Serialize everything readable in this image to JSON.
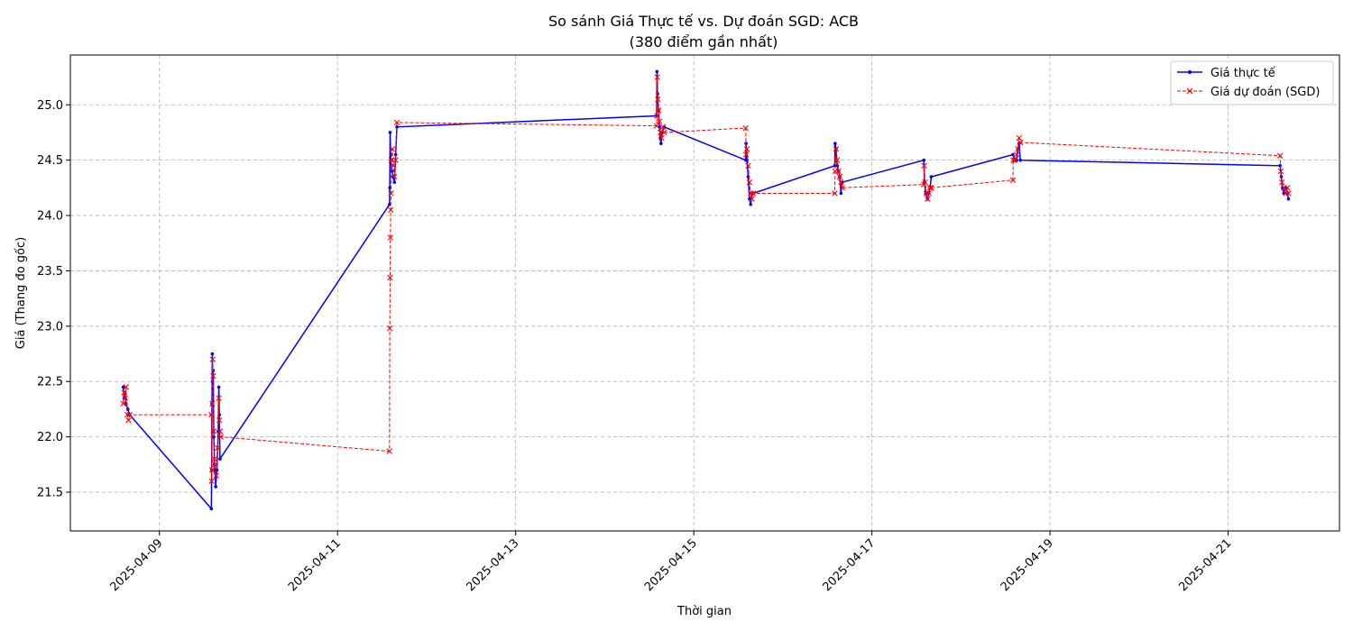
{
  "chart_data": {
    "type": "line",
    "title": "So sánh Giá Thực tế vs. Dự đoán SGD: ACB",
    "subtitle": "(380 điểm gần nhất)",
    "xlabel": "Thời gian",
    "ylabel": "Giá (Thang đo gốc)",
    "x_tick_labels": [
      "2025-04-09",
      "2025-04-11",
      "2025-04-13",
      "2025-04-15",
      "2025-04-17",
      "2025-04-19",
      "2025-04-21"
    ],
    "y_tick_labels": [
      "21.5",
      "22.0",
      "22.5",
      "23.0",
      "23.5",
      "24.0",
      "24.5",
      "25.0"
    ],
    "xlim": [
      "2025-04-08T00:00",
      "2025-04-22T06:00"
    ],
    "ylim": [
      21.15,
      25.45
    ],
    "grid": true,
    "legend_position": "top-right",
    "series": [
      {
        "name": "Giá thực tế",
        "color": "#0000ff",
        "line_style": "solid",
        "marker": "dot",
        "points": [
          [
            "2025-04-08T14:15",
            22.45
          ],
          [
            "2025-04-08T14:30",
            22.35
          ],
          [
            "2025-04-08T14:45",
            22.4
          ],
          [
            "2025-04-08T15:00",
            22.3
          ],
          [
            "2025-04-08T15:30",
            22.25
          ],
          [
            "2025-04-08T16:00",
            22.2
          ],
          [
            "2025-04-09T14:00",
            21.35
          ],
          [
            "2025-04-09T14:05",
            21.7
          ],
          [
            "2025-04-09T14:10",
            22.3
          ],
          [
            "2025-04-09T14:15",
            22.75
          ],
          [
            "2025-04-09T14:20",
            22.5
          ],
          [
            "2025-04-09T14:30",
            22.6
          ],
          [
            "2025-04-09T14:40",
            22.0
          ],
          [
            "2025-04-09T14:50",
            21.75
          ],
          [
            "2025-04-09T15:00",
            21.7
          ],
          [
            "2025-04-09T15:10",
            21.55
          ],
          [
            "2025-04-09T15:30",
            21.7
          ],
          [
            "2025-04-09T15:50",
            22.05
          ],
          [
            "2025-04-09T16:00",
            22.45
          ],
          [
            "2025-04-09T16:10",
            22.2
          ],
          [
            "2025-04-09T16:20",
            21.8
          ],
          [
            "2025-04-11T14:00",
            24.1
          ],
          [
            "2025-04-11T14:05",
            24.25
          ],
          [
            "2025-04-11T14:10",
            24.75
          ],
          [
            "2025-04-11T14:20",
            24.5
          ],
          [
            "2025-04-11T14:40",
            24.4
          ],
          [
            "2025-04-11T15:00",
            24.35
          ],
          [
            "2025-04-11T15:20",
            24.3
          ],
          [
            "2025-04-11T15:40",
            24.55
          ],
          [
            "2025-04-11T16:00",
            24.8
          ],
          [
            "2025-04-14T14:00",
            24.9
          ],
          [
            "2025-04-14T14:05",
            25.3
          ],
          [
            "2025-04-14T14:15",
            25.1
          ],
          [
            "2025-04-14T14:30",
            24.95
          ],
          [
            "2025-04-14T14:45",
            24.8
          ],
          [
            "2025-04-14T15:00",
            24.7
          ],
          [
            "2025-04-14T15:10",
            24.65
          ],
          [
            "2025-04-14T15:30",
            24.75
          ],
          [
            "2025-04-14T16:00",
            24.8
          ],
          [
            "2025-04-15T14:00",
            24.5
          ],
          [
            "2025-04-15T14:05",
            24.65
          ],
          [
            "2025-04-15T14:20",
            24.5
          ],
          [
            "2025-04-15T14:40",
            24.35
          ],
          [
            "2025-04-15T15:00",
            24.15
          ],
          [
            "2025-04-15T15:20",
            24.1
          ],
          [
            "2025-04-15T15:40",
            24.2
          ],
          [
            "2025-04-15T16:00",
            24.2
          ],
          [
            "2025-04-16T14:00",
            24.45
          ],
          [
            "2025-04-16T14:05",
            24.65
          ],
          [
            "2025-04-16T14:20",
            24.6
          ],
          [
            "2025-04-16T14:40",
            24.45
          ],
          [
            "2025-04-16T15:00",
            24.4
          ],
          [
            "2025-04-16T15:20",
            24.35
          ],
          [
            "2025-04-16T15:40",
            24.2
          ],
          [
            "2025-04-16T16:00",
            24.3
          ],
          [
            "2025-04-17T14:00",
            24.5
          ],
          [
            "2025-04-17T14:10",
            24.3
          ],
          [
            "2025-04-17T14:30",
            24.2
          ],
          [
            "2025-04-17T15:00",
            24.15
          ],
          [
            "2025-04-17T15:20",
            24.2
          ],
          [
            "2025-04-17T15:40",
            24.25
          ],
          [
            "2025-04-17T16:00",
            24.35
          ],
          [
            "2025-04-18T14:00",
            24.55
          ],
          [
            "2025-04-18T14:30",
            24.5
          ],
          [
            "2025-04-18T15:00",
            24.5
          ],
          [
            "2025-04-18T15:20",
            24.6
          ],
          [
            "2025-04-18T15:40",
            24.65
          ],
          [
            "2025-04-18T16:00",
            24.5
          ],
          [
            "2025-04-21T14:00",
            24.45
          ],
          [
            "2025-04-21T14:20",
            24.35
          ],
          [
            "2025-04-21T14:40",
            24.25
          ],
          [
            "2025-04-21T15:00",
            24.2
          ],
          [
            "2025-04-21T15:30",
            24.25
          ],
          [
            "2025-04-21T16:00",
            24.2
          ],
          [
            "2025-04-21T16:15",
            24.15
          ]
        ]
      },
      {
        "name": "Giá dự đoán (SGD)",
        "color": "#ff0000",
        "line_style": "dashed",
        "marker": "x",
        "points": [
          [
            "2025-04-08T14:15",
            22.3
          ],
          [
            "2025-04-08T14:30",
            22.4
          ],
          [
            "2025-04-08T14:45",
            22.35
          ],
          [
            "2025-04-08T15:00",
            22.45
          ],
          [
            "2025-04-08T15:20",
            22.2
          ],
          [
            "2025-04-08T15:40",
            22.15
          ],
          [
            "2025-04-08T16:00",
            22.2
          ],
          [
            "2025-04-09T14:00",
            22.2
          ],
          [
            "2025-04-09T14:05",
            21.6
          ],
          [
            "2025-04-09T14:10",
            21.7
          ],
          [
            "2025-04-09T14:15",
            22.3
          ],
          [
            "2025-04-09T14:20",
            22.7
          ],
          [
            "2025-04-09T14:30",
            22.55
          ],
          [
            "2025-04-09T14:40",
            22.05
          ],
          [
            "2025-04-09T14:50",
            21.8
          ],
          [
            "2025-04-09T15:00",
            21.75
          ],
          [
            "2025-04-09T15:20",
            21.65
          ],
          [
            "2025-04-09T15:40",
            21.9
          ],
          [
            "2025-04-09T16:00",
            22.35
          ],
          [
            "2025-04-09T16:10",
            22.15
          ],
          [
            "2025-04-09T16:20",
            22.05
          ],
          [
            "2025-04-09T16:30",
            22.0
          ],
          [
            "2025-04-11T14:00",
            21.87
          ],
          [
            "2025-04-11T14:05",
            22.98
          ],
          [
            "2025-04-11T14:10",
            23.44
          ],
          [
            "2025-04-11T14:15",
            23.8
          ],
          [
            "2025-04-11T14:20",
            24.05
          ],
          [
            "2025-04-11T14:25",
            24.2
          ],
          [
            "2025-04-11T14:30",
            24.5
          ],
          [
            "2025-04-11T14:45",
            24.6
          ],
          [
            "2025-04-11T15:00",
            24.45
          ],
          [
            "2025-04-11T15:20",
            24.35
          ],
          [
            "2025-04-11T15:40",
            24.5
          ],
          [
            "2025-04-11T16:00",
            24.84
          ],
          [
            "2025-04-14T14:00",
            24.81
          ],
          [
            "2025-04-14T14:05",
            24.9
          ],
          [
            "2025-04-14T14:10",
            25.25
          ],
          [
            "2025-04-14T14:20",
            25.05
          ],
          [
            "2025-04-14T14:30",
            24.95
          ],
          [
            "2025-04-14T14:45",
            24.85
          ],
          [
            "2025-04-14T15:00",
            24.75
          ],
          [
            "2025-04-14T15:20",
            24.7
          ],
          [
            "2025-04-14T15:40",
            24.8
          ],
          [
            "2025-04-14T16:00",
            24.75
          ],
          [
            "2025-04-15T14:00",
            24.79
          ],
          [
            "2025-04-15T14:05",
            24.55
          ],
          [
            "2025-04-15T14:20",
            24.6
          ],
          [
            "2025-04-15T14:40",
            24.45
          ],
          [
            "2025-04-15T15:00",
            24.3
          ],
          [
            "2025-04-15T15:20",
            24.2
          ],
          [
            "2025-04-15T15:40",
            24.15
          ],
          [
            "2025-04-15T16:00",
            24.2
          ],
          [
            "2025-04-16T14:00",
            24.2
          ],
          [
            "2025-04-16T14:05",
            24.4
          ],
          [
            "2025-04-16T14:20",
            24.6
          ],
          [
            "2025-04-16T14:40",
            24.5
          ],
          [
            "2025-04-16T15:00",
            24.4
          ],
          [
            "2025-04-16T15:20",
            24.35
          ],
          [
            "2025-04-16T15:40",
            24.3
          ],
          [
            "2025-04-16T16:00",
            24.25
          ],
          [
            "2025-04-17T14:00",
            24.28
          ],
          [
            "2025-04-17T14:05",
            24.45
          ],
          [
            "2025-04-17T14:20",
            24.3
          ],
          [
            "2025-04-17T14:40",
            24.2
          ],
          [
            "2025-04-17T15:00",
            24.15
          ],
          [
            "2025-04-17T15:20",
            24.2
          ],
          [
            "2025-04-17T15:40",
            24.25
          ],
          [
            "2025-04-17T16:00",
            24.25
          ],
          [
            "2025-04-18T14:00",
            24.32
          ],
          [
            "2025-04-18T14:05",
            24.5
          ],
          [
            "2025-04-18T14:30",
            24.5
          ],
          [
            "2025-04-18T15:00",
            24.55
          ],
          [
            "2025-04-18T15:20",
            24.6
          ],
          [
            "2025-04-18T15:40",
            24.7
          ],
          [
            "2025-04-18T16:00",
            24.66
          ],
          [
            "2025-04-21T14:00",
            24.54
          ],
          [
            "2025-04-21T14:10",
            24.4
          ],
          [
            "2025-04-21T14:30",
            24.3
          ],
          [
            "2025-04-21T15:00",
            24.25
          ],
          [
            "2025-04-21T15:30",
            24.2
          ],
          [
            "2025-04-21T16:00",
            24.25
          ],
          [
            "2025-04-21T16:15",
            24.2
          ]
        ]
      }
    ]
  }
}
